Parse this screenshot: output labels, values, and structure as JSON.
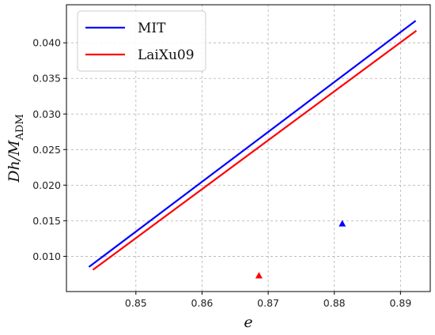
{
  "chart_data": {
    "type": "line",
    "xlabel": "e",
    "ylabel": "Dh/M_ADM",
    "ylabel_main": "Dh/M",
    "ylabel_sub": "ADM",
    "xlim": [
      0.8395,
      0.8945
    ],
    "ylim": [
      0.00505,
      0.04535
    ],
    "xticks": [
      0.85,
      0.86,
      0.87,
      0.88,
      0.89
    ],
    "xtick_labels": [
      "0.85",
      "0.86",
      "0.87",
      "0.88",
      "0.89"
    ],
    "yticks": [
      0.01,
      0.015,
      0.02,
      0.025,
      0.03,
      0.035,
      0.04
    ],
    "ytick_labels": [
      "0.010",
      "0.015",
      "0.020",
      "0.025",
      "0.030",
      "0.035",
      "0.040"
    ],
    "grid": true,
    "legend_position": "upper-left",
    "series": [
      {
        "name": "MIT",
        "color": "#0000ff",
        "x": [
          0.8429,
          0.8923
        ],
        "y": [
          0.0085,
          0.0431
        ]
      },
      {
        "name": "LaiXu09",
        "color": "#ff0000",
        "x": [
          0.8435,
          0.8924
        ],
        "y": [
          0.0081,
          0.0417
        ]
      }
    ],
    "markers": [
      {
        "color": "#0000ff",
        "shape": "triangle",
        "x": 0.8812,
        "y": 0.0146
      },
      {
        "color": "#ff0000",
        "shape": "triangle",
        "x": 0.8686,
        "y": 0.0073
      }
    ]
  }
}
